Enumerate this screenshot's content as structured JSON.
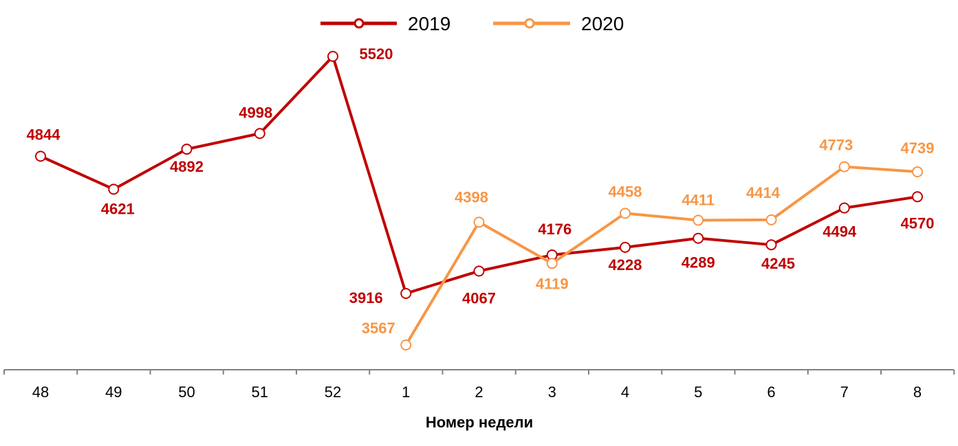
{
  "chart_data": {
    "type": "line",
    "title": "",
    "xlabel": "Номер недели",
    "ylabel": "",
    "categories": [
      "48",
      "49",
      "50",
      "51",
      "52",
      "1",
      "2",
      "3",
      "4",
      "5",
      "6",
      "7",
      "8"
    ],
    "series": [
      {
        "name": "2019",
        "color": "#C00000",
        "values": [
          4844,
          4621,
          4892,
          4998,
          5520,
          3916,
          4067,
          4176,
          4228,
          4289,
          4245,
          4494,
          4570
        ]
      },
      {
        "name": "2020",
        "color": "#F79646",
        "values": [
          null,
          null,
          null,
          null,
          null,
          3567,
          4398,
          4119,
          4458,
          4411,
          4414,
          4773,
          4739
        ]
      }
    ],
    "ylim": [
      3400,
      5620
    ],
    "grid": false,
    "legend": "top-center",
    "data_labels": true,
    "markers": "hollow-circle"
  }
}
